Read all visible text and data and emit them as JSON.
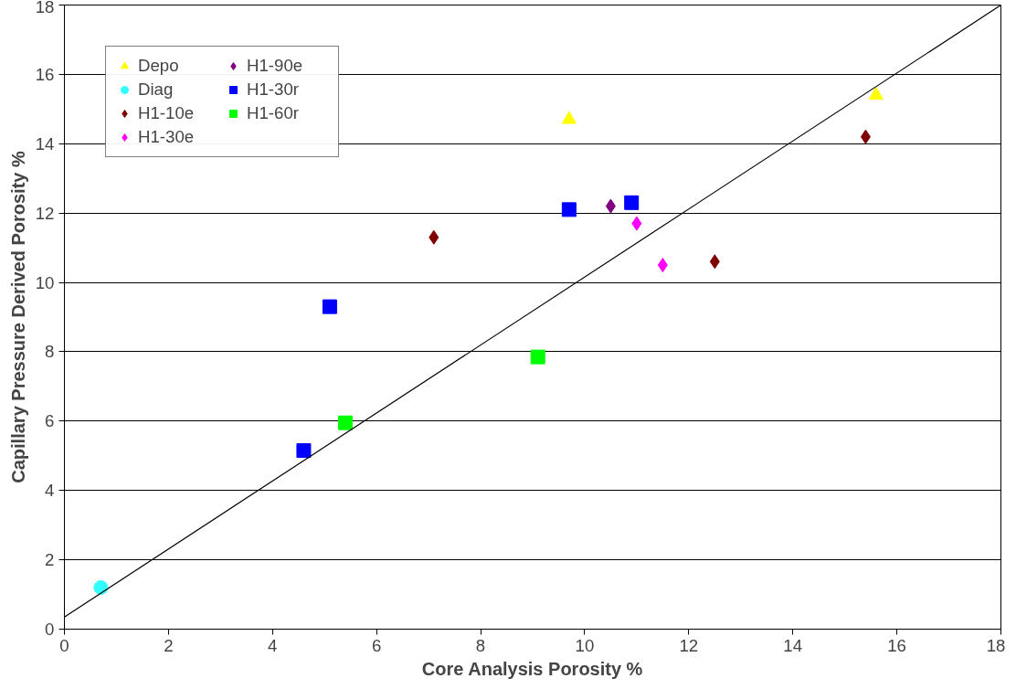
{
  "chart_data": {
    "type": "scatter",
    "xlabel": "Core Analysis Porosity %",
    "ylabel": "Capillary Pressure Derived Porosity %",
    "xlim": [
      0,
      18
    ],
    "ylim": [
      0,
      18
    ],
    "xticks": [
      0,
      2,
      4,
      6,
      8,
      10,
      12,
      14,
      16,
      18
    ],
    "yticks": [
      0,
      2,
      4,
      6,
      8,
      10,
      12,
      14,
      16,
      18
    ],
    "grid": "y",
    "legend": "top left",
    "series": [
      {
        "name": "Depo",
        "color": "#ffff00",
        "marker": "triangle",
        "x": [
          9.7,
          15.6
        ],
        "values": [
          14.7,
          15.4
        ]
      },
      {
        "name": "Diag",
        "color": "#33ffff",
        "marker": "circle",
        "x": [
          0.7
        ],
        "values": [
          1.2
        ]
      },
      {
        "name": "H1-10e",
        "color": "#800000",
        "marker": "diamond",
        "x": [
          7.1,
          12.5,
          15.4
        ],
        "values": [
          11.3,
          10.6,
          14.2
        ]
      },
      {
        "name": "H1-30e",
        "color": "#ff00ff",
        "marker": "diamond",
        "x": [
          11.0,
          11.5
        ],
        "values": [
          11.7,
          10.5
        ]
      },
      {
        "name": "H1-90e",
        "color": "#800080",
        "marker": "diamond",
        "x": [
          10.5
        ],
        "values": [
          12.2
        ]
      },
      {
        "name": "H1-30r",
        "color": "#0000ff",
        "marker": "square",
        "x": [
          4.6,
          5.1,
          9.7,
          10.9
        ],
        "values": [
          5.15,
          9.3,
          12.1,
          12.3
        ]
      },
      {
        "name": "H1-60r",
        "color": "#00ff00",
        "marker": "square",
        "x": [
          5.4,
          9.1
        ],
        "values": [
          5.95,
          7.85
        ]
      },
      {
        "type": "line",
        "color": "#000000",
        "marker": "none",
        "x": [
          0,
          18
        ],
        "values": [
          0.35,
          18
        ]
      }
    ]
  }
}
